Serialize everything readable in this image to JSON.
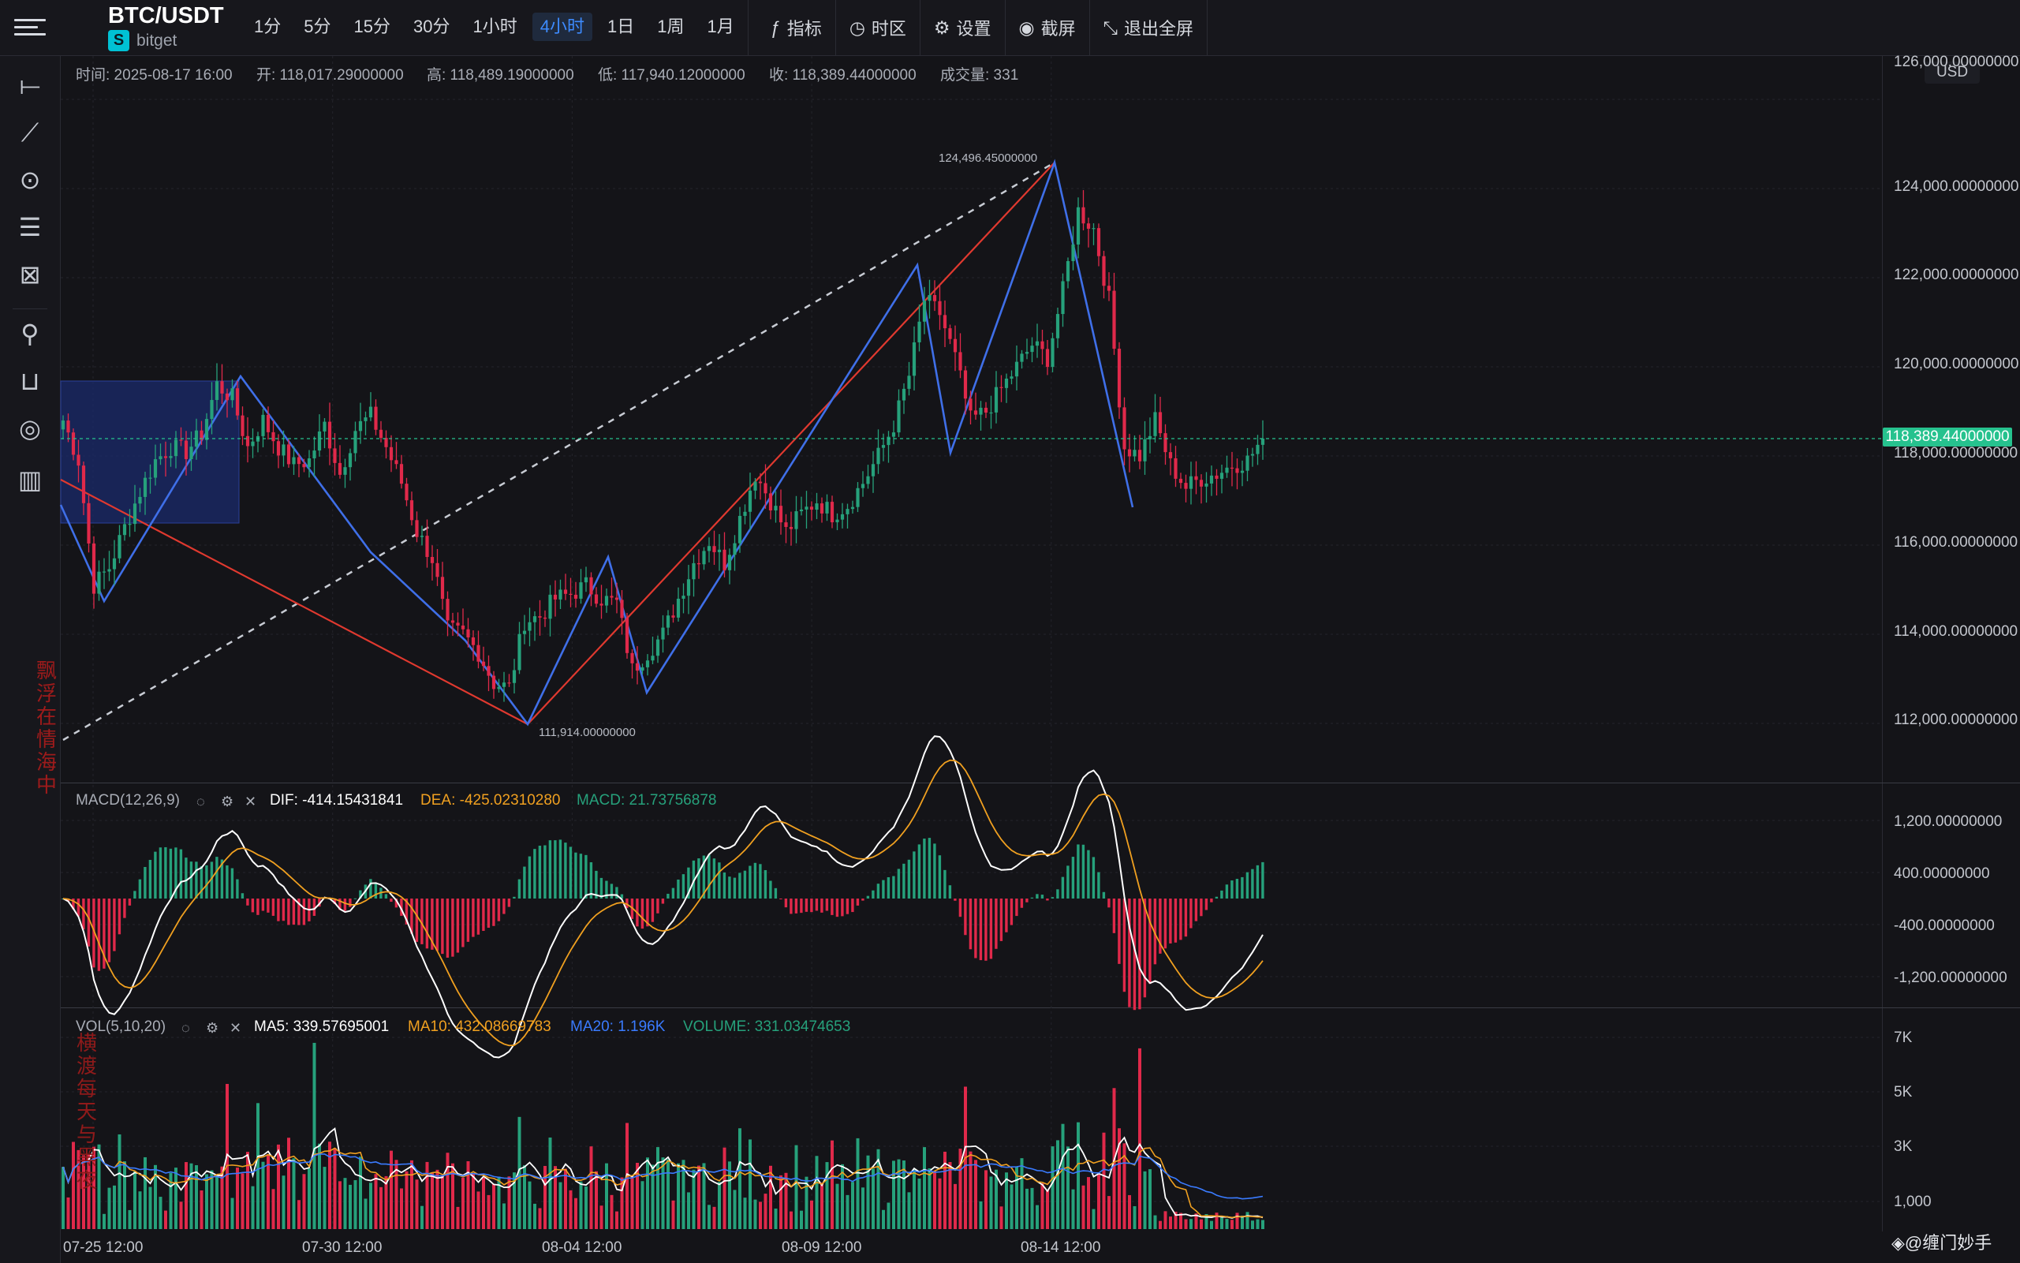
{
  "header": {
    "symbol": "BTC/USDT",
    "exchange": "bitget",
    "intervals": [
      "1分",
      "5分",
      "15分",
      "30分",
      "1小时",
      "4小时",
      "1日",
      "1周",
      "1月"
    ],
    "active_interval": "4小时",
    "tools": [
      {
        "icon": "indicator-icon",
        "label": "指标"
      },
      {
        "icon": "timezone-icon",
        "label": "时区"
      },
      {
        "icon": "gear-icon",
        "label": "设置"
      },
      {
        "icon": "camera-icon",
        "label": "截屏"
      },
      {
        "icon": "exit-fullscreen-icon",
        "label": "退出全屏"
      }
    ]
  },
  "sidebar": {
    "tools": [
      "horizontal-line-icon",
      "trend-line-icon",
      "circle-icon",
      "fib-icon",
      "pattern-icon",
      "magnet-icon",
      "unlock-icon",
      "eye-icon",
      "trash-icon"
    ]
  },
  "ohlc": {
    "time": "时间: 2025-08-17 16:00",
    "open": "开: 118,017.29000000",
    "high": "高: 118,489.19000000",
    "low": "低: 117,940.12000000",
    "close": "收: 118,389.44000000",
    "volume": "成交量: 331"
  },
  "currency_label": "USD",
  "last_price_tag": "118,389.44000000",
  "annotations": {
    "high_label": "124,496.45000000",
    "low_label": "111,914.00000000"
  },
  "macd_legend": {
    "name": "MACD(12,26,9)",
    "dif": "DIF: -414.15431841",
    "dea": "DEA: -425.02310280",
    "macd": "MACD: 21.73756878"
  },
  "vol_legend": {
    "name": "VOL(5,10,20)",
    "ma5": "MA5: 339.57695001",
    "ma10": "MA10: 432.08669783",
    "ma20": "MA20: 1.196K",
    "volume": "VOLUME: 331.03474653"
  },
  "watermarks": {
    "side1": "飘浮在情海中",
    "side2": "横渡每天与黑夜",
    "brand": "缠门妙手"
  },
  "colors": {
    "up": "#26a17b",
    "down": "#e0294a",
    "dif": "#ffffff",
    "dea": "#f0a020",
    "ma20": "#3a7bff",
    "accent": "#3d8bff",
    "tag": "#26c28e"
  },
  "chart_data": {
    "type": "candlestick",
    "time_labels": [
      "07-25 12:00",
      "07-30 12:00",
      "08-04 12:00",
      "08-09 12:00",
      "08-14 12:00"
    ],
    "price_axis": {
      "labels": [
        "126,000.00000000",
        "124,000.00000000",
        "122,000.00000000",
        "120,000.00000000",
        "118,000.00000000",
        "116,000.00000000",
        "114,000.00000000",
        "112,000.00000000"
      ],
      "range": [
        111000,
        126800
      ]
    },
    "last_price": 118389.44,
    "swing_high": 124496.45,
    "swing_low": 111914.0,
    "close_anchors": [
      [
        0,
        118800
      ],
      [
        3,
        117900
      ],
      [
        6,
        115100
      ],
      [
        9,
        115500
      ],
      [
        12,
        116400
      ],
      [
        15,
        117200
      ],
      [
        18,
        117900
      ],
      [
        21,
        118200
      ],
      [
        24,
        118100
      ],
      [
        27,
        118500
      ],
      [
        30,
        119600
      ],
      [
        33,
        119300
      ],
      [
        36,
        118200
      ],
      [
        39,
        118800
      ],
      [
        42,
        118200
      ],
      [
        45,
        117800
      ],
      [
        48,
        117900
      ],
      [
        51,
        118700
      ],
      [
        54,
        117600
      ],
      [
        57,
        118600
      ],
      [
        60,
        118900
      ],
      [
        63,
        118200
      ],
      [
        66,
        117400
      ],
      [
        69,
        116300
      ],
      [
        72,
        115700
      ],
      [
        75,
        114100
      ],
      [
        78,
        114000
      ],
      [
        81,
        113600
      ],
      [
        84,
        112900
      ],
      [
        87,
        112800
      ],
      [
        90,
        114300
      ],
      [
        93,
        114400
      ],
      [
        96,
        114800
      ],
      [
        99,
        114900
      ],
      [
        102,
        115100
      ],
      [
        105,
        114800
      ],
      [
        108,
        114700
      ],
      [
        111,
        113200
      ],
      [
        114,
        113600
      ],
      [
        117,
        114000
      ],
      [
        120,
        114800
      ],
      [
        123,
        115600
      ],
      [
        126,
        116100
      ],
      [
        129,
        115600
      ],
      [
        132,
        116600
      ],
      [
        135,
        117600
      ],
      [
        138,
        117000
      ],
      [
        141,
        116300
      ],
      [
        144,
        116700
      ],
      [
        147,
        117000
      ],
      [
        150,
        116700
      ],
      [
        153,
        116900
      ],
      [
        156,
        117400
      ],
      [
        159,
        118000
      ],
      [
        162,
        118700
      ],
      [
        165,
        119800
      ],
      [
        168,
        121500
      ],
      [
        171,
        121200
      ],
      [
        174,
        120200
      ],
      [
        177,
        118800
      ],
      [
        180,
        119000
      ],
      [
        183,
        119500
      ],
      [
        186,
        120000
      ],
      [
        189,
        120500
      ],
      [
        192,
        120200
      ],
      [
        195,
        121700
      ],
      [
        198,
        123500
      ],
      [
        201,
        123100
      ],
      [
        204,
        121500
      ],
      [
        207,
        118200
      ],
      [
        210,
        118000
      ],
      [
        213,
        118800
      ],
      [
        216,
        117800
      ],
      [
        219,
        117300
      ],
      [
        222,
        117500
      ],
      [
        225,
        117600
      ],
      [
        228,
        117800
      ],
      [
        231,
        117900
      ],
      [
        234,
        118389
      ]
    ],
    "macd_axis": {
      "labels": [
        "1,200.00000000",
        "400.00000000",
        "-400.00000000",
        "-1,200.00000000"
      ]
    },
    "volume_axis": {
      "labels": [
        "7K",
        "5K",
        "3K",
        "1,000"
      ]
    },
    "volume_ma20_last": 1196,
    "volume_last": 331.03
  }
}
